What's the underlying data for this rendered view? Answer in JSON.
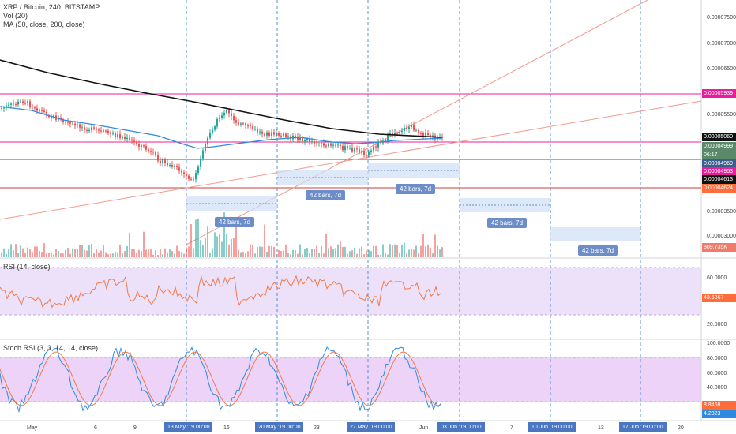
{
  "legend": {
    "title": "XRP / Bitcoin, 240, BITSTAMP",
    "volume": "Vol (20)",
    "ma": "MA (50, close, 200, close)"
  },
  "panes": {
    "rsi_title": "RSI (14, close)",
    "stoch_title": "Stoch RSI (3, 3, 14, 14, close)"
  },
  "price_axis": {
    "ticks": [
      "0.00007500",
      "0.00007000",
      "0.00006500",
      "0.00005500",
      "0.00003500",
      "0.00003000"
    ],
    "tags": [
      {
        "text": "0.00005939",
        "color": "#e91e9a"
      },
      {
        "text": "0.00005060",
        "color": "#111111"
      },
      {
        "text": "0.00004999",
        "color": "#5a8a6a"
      },
      {
        "text": "06:17",
        "color": "#5a8a6a"
      },
      {
        "text": "0.00004969",
        "color": "#3b5e8c"
      },
      {
        "text": "0.00004953",
        "color": "#e91e9a"
      },
      {
        "text": "0.00004613",
        "color": "#111111"
      },
      {
        "text": "0.00004624",
        "color": "#ff6d3a"
      },
      {
        "text": "809.735K",
        "color": "#ef7b6b"
      }
    ]
  },
  "rsi_axis": {
    "ticks": [
      "60.0000",
      "20.0000"
    ],
    "tag": {
      "text": "43.5867",
      "color": "#ff6d3a"
    }
  },
  "stoch_axis": {
    "ticks": [
      "100.0000",
      "80.0000",
      "60.0000",
      "40.0000"
    ],
    "tags": [
      {
        "text": "8.8468",
        "color": "#ff6d3a"
      },
      {
        "text": "4.2323",
        "color": "#2d8ae0"
      }
    ]
  },
  "time_axis": {
    "labels": [
      "May",
      "6",
      "9",
      "16",
      "23",
      "Jun",
      "7",
      "13",
      "20"
    ],
    "highlights": [
      "13 May '19  00:00",
      "20 May '19  00:00",
      "27 May '19  00:00",
      "03 Jun '19  00:00",
      "10 Jun '19  00:00",
      "17 Jun '19  00:00"
    ]
  },
  "bars_labels": [
    "42 bars, 7d",
    "42 bars, 7d",
    "42 bars, 7d",
    "42 bars, 7d",
    "42 bars, 7d"
  ],
  "colors": {
    "up": "#26a69a",
    "down": "#ef5350",
    "ma50": "#2d8ae0",
    "ma200": "#111111",
    "rsi_band": "#e9d8f7",
    "stoch_band": "#e8c8f5",
    "vline": "#5b8fd6"
  }
}
